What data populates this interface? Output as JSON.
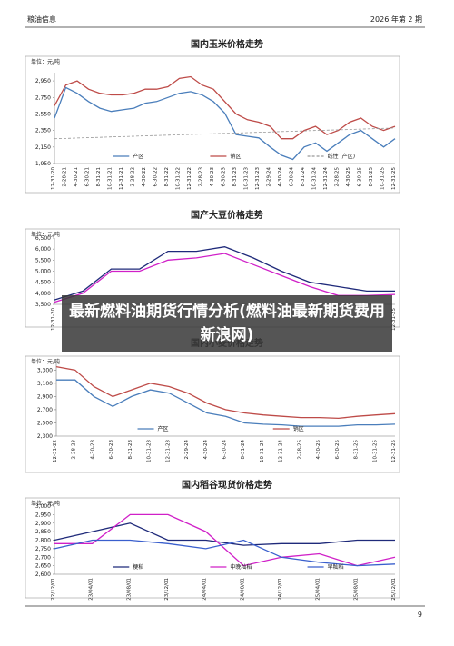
{
  "header": {
    "left": "粮油信息",
    "right": "2026 年第 2 期"
  },
  "overlay": {
    "title": "最新燃料油期货行情分析(燃料油最新期货费用新浪网)"
  },
  "page_number": "9",
  "chart_data": [
    {
      "type": "line",
      "title": "国内玉米价格走势",
      "unit": "单位：元/吨",
      "categories": [
        "12-31-20",
        "2-28-21",
        "4-30-21",
        "6-30-21",
        "8-31-21",
        "10-31-21",
        "12-31-21",
        "2-28-22",
        "4-30-22",
        "6-30-22",
        "8-31-22",
        "10-31-22",
        "12-31-22",
        "2-28-23",
        "4-30-23",
        "6-30-23",
        "8-31-23",
        "10-31-23",
        "12-31-23",
        "2-29-24",
        "4-30-24",
        "6-30-24",
        "8-31-24",
        "10-31-24",
        "12-31-24",
        "2-28-25",
        "4-30-25",
        "6-30-25",
        "8-31-25",
        "10-31-25",
        "12-31-25"
      ],
      "ylim": [
        1950,
        3050
      ],
      "yticks": [
        {
          "value": 1950,
          "label": "1,950"
        },
        {
          "value": 2150,
          "label": "2,150"
        },
        {
          "value": 2350,
          "label": "2,350"
        },
        {
          "value": 2550,
          "label": "2,550"
        },
        {
          "value": 2750,
          "label": "2,750"
        },
        {
          "value": 2950,
          "label": "2,950"
        }
      ],
      "series": [
        {
          "name": "产区",
          "color": "#4a7ebb",
          "values": [
            2500,
            2870,
            2800,
            2700,
            2620,
            2580,
            2600,
            2620,
            2680,
            2700,
            2750,
            2800,
            2820,
            2780,
            2700,
            2560,
            2300,
            2280,
            2260,
            2150,
            2050,
            2000,
            2150,
            2200,
            2100,
            2200,
            2300,
            2350,
            2250,
            2150,
            2250
          ]
        },
        {
          "name": "销区",
          "color": "#be4b48",
          "values": [
            2650,
            2900,
            2950,
            2850,
            2800,
            2780,
            2780,
            2800,
            2850,
            2850,
            2880,
            2980,
            3000,
            2900,
            2850,
            2700,
            2550,
            2480,
            2450,
            2400,
            2250,
            2250,
            2350,
            2400,
            2300,
            2350,
            2450,
            2500,
            2400,
            2350,
            2400
          ]
        },
        {
          "name": "线性 (产区)",
          "color": "#999999",
          "style": "dashed",
          "values": [
            2250,
            2254,
            2259,
            2263,
            2267,
            2272,
            2276,
            2280,
            2285,
            2289,
            2293,
            2298,
            2302,
            2306,
            2311,
            2315,
            2319,
            2324,
            2328,
            2332,
            2337,
            2341,
            2345,
            2350,
            2354,
            2358,
            2363,
            2367,
            2371,
            2376,
            2380
          ]
        }
      ]
    },
    {
      "type": "line",
      "title": "国产大豆价格走势",
      "unit": "单位：元/吨",
      "categories": [
        "12-31-20",
        null,
        null,
        null,
        null,
        null,
        null,
        null,
        null,
        null,
        null,
        null,
        "12-31-25"
      ],
      "ylim": [
        3500,
        6500
      ],
      "yticks": [
        {
          "value": 3500,
          "label": "3,500"
        },
        {
          "value": 4000,
          "label": "4,000"
        },
        {
          "value": 4500,
          "label": "4,500"
        },
        {
          "value": 5000,
          "label": "5,000"
        },
        {
          "value": 5500,
          "label": "5,500"
        },
        {
          "value": 6000,
          "label": "6,000"
        },
        {
          "value": 6500,
          "label": "6,500"
        }
      ],
      "series": [
        {
          "color": "#1f2a7a",
          "values": [
            3700,
            4100,
            5100,
            5100,
            5900,
            5900,
            6100,
            5600,
            5000,
            4500,
            4300,
            4100,
            4100
          ]
        },
        {
          "color": "#d020c8",
          "values": [
            3600,
            4000,
            5000,
            5000,
            5500,
            5600,
            5800,
            5300,
            4800,
            4300,
            3900,
            3900,
            3950
          ]
        }
      ]
    },
    {
      "type": "line",
      "title": "国内小麦价格走势",
      "unit": "单位：元/吨",
      "categories": [
        "12-31-22",
        "2-28-23",
        "4-30-23",
        "6-30-23",
        "8-31-23",
        "10-31-23",
        "12-31-23",
        "2-29-24",
        "4-30-24",
        "6-30-24",
        "8-31-24",
        "10-31-24",
        "12-31-24",
        "2-28-25",
        "4-30-25",
        "6-30-25",
        "8-31-25",
        "10-31-25",
        "12-31-25"
      ],
      "ylim": [
        2300,
        3400
      ],
      "yticks": [
        {
          "value": 2300,
          "label": "2,300"
        },
        {
          "value": 2500,
          "label": "2,500"
        },
        {
          "value": 2700,
          "label": "2,700"
        },
        {
          "value": 2900,
          "label": "2,900"
        },
        {
          "value": 3100,
          "label": "3,100"
        },
        {
          "value": 3300,
          "label": "3,300"
        }
      ],
      "series": [
        {
          "name": "产区",
          "color": "#4a7ebb",
          "values": [
            3150,
            3150,
            2900,
            2750,
            2900,
            3000,
            2950,
            2800,
            2650,
            2600,
            2500,
            2480,
            2470,
            2450,
            2450,
            2450,
            2470,
            2470,
            2480
          ]
        },
        {
          "name": "销区",
          "color": "#be4b48",
          "values": [
            3350,
            3300,
            3050,
            2900,
            3000,
            3100,
            3050,
            2950,
            2800,
            2700,
            2650,
            2620,
            2600,
            2580,
            2580,
            2570,
            2600,
            2620,
            2640
          ]
        }
      ]
    },
    {
      "type": "line",
      "title": "国内稻谷现货价格走势",
      "unit": "单位：元/吨",
      "categories": [
        "22/12/01",
        "23/04/01",
        "23/08/01",
        "23/12/01",
        "24/04/01",
        "24/08/01",
        "24/12/01",
        "25/04/01",
        "25/08/01",
        "25/12/01"
      ],
      "ylim": [
        2600,
        3000
      ],
      "yticks": [
        {
          "value": 2600,
          "label": "2,600"
        },
        {
          "value": 2650,
          "label": "2,650"
        },
        {
          "value": 2700,
          "label": "2,700"
        },
        {
          "value": 2750,
          "label": "2,750"
        },
        {
          "value": 2800,
          "label": "2,800"
        },
        {
          "value": 2850,
          "label": "2,850"
        },
        {
          "value": 2900,
          "label": "2,900"
        },
        {
          "value": 2950,
          "label": "2,950"
        },
        {
          "value": 3000,
          "label": "3,000"
        }
      ],
      "series": [
        {
          "name": "粳稻",
          "color": "#1f2a7a",
          "values": [
            2800,
            2850,
            2900,
            2800,
            2800,
            2770,
            2780,
            2780,
            2800,
            2800
          ]
        },
        {
          "name": "中晚籼稻",
          "color": "#d020c8",
          "values": [
            2780,
            2780,
            2950,
            2950,
            2850,
            2650,
            2700,
            2720,
            2650,
            2700
          ]
        },
        {
          "name": "早籼稻",
          "color": "#3a5fcd",
          "values": [
            2750,
            2800,
            2800,
            2780,
            2750,
            2800,
            2700,
            2670,
            2650,
            2660
          ]
        }
      ]
    }
  ]
}
